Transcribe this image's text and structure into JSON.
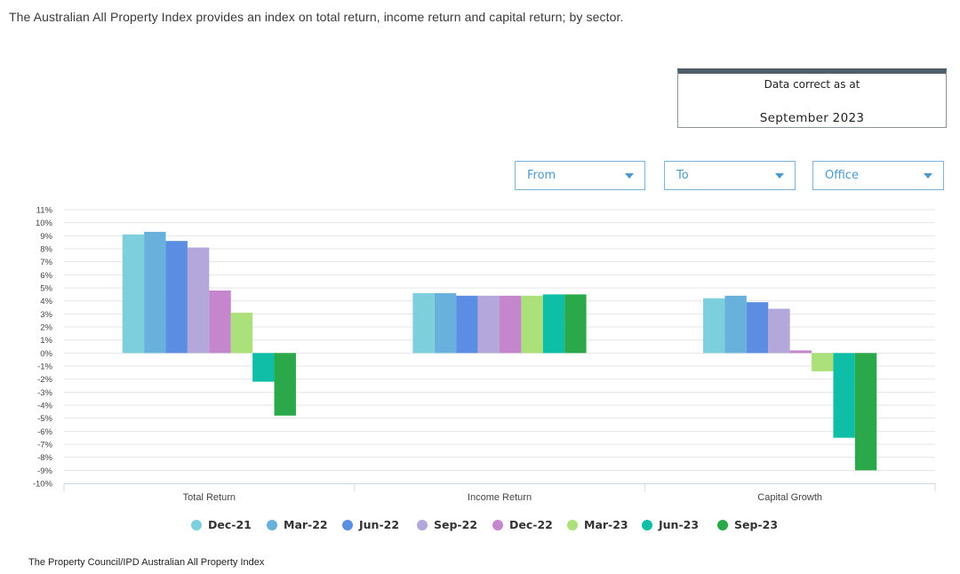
{
  "intro": "The Australian All Property Index provides an index on total return, income return and capital return; by sector.",
  "data_box": {
    "label": "Data correct as at",
    "value": "September 2023"
  },
  "filters": {
    "from": "From",
    "to": "To",
    "sector": "Office"
  },
  "source": "The Property Council/IPD Australian All Property Index",
  "chart_data": {
    "type": "bar",
    "title": "",
    "xlabel": "",
    "ylabel": "",
    "ylim": [
      -10,
      11
    ],
    "yticks": [
      "11%",
      "10%",
      "9%",
      "8%",
      "7%",
      "6%",
      "5%",
      "4%",
      "3%",
      "2%",
      "1%",
      "0%",
      "-1%",
      "-2%",
      "-3%",
      "-4%",
      "-5%",
      "-6%",
      "-7%",
      "-8%",
      "-9%",
      "-10%"
    ],
    "categories": [
      "Total Return",
      "Income Return",
      "Capital Growth"
    ],
    "grid": true,
    "legend_position": "bottom",
    "series": [
      {
        "name": "Dec-21",
        "color": "#7ecfdd",
        "values": [
          9.1,
          4.6,
          4.2
        ]
      },
      {
        "name": "Mar-22",
        "color": "#67b1dc",
        "values": [
          9.3,
          4.6,
          4.4
        ]
      },
      {
        "name": "Jun-22",
        "color": "#5b8ee2",
        "values": [
          8.6,
          4.4,
          3.9
        ]
      },
      {
        "name": "Sep-22",
        "color": "#b4a7da",
        "values": [
          8.1,
          4.4,
          3.4
        ]
      },
      {
        "name": "Dec-22",
        "color": "#c486cd",
        "values": [
          4.8,
          4.4,
          0.2
        ]
      },
      {
        "name": "Mar-23",
        "color": "#abe07a",
        "values": [
          3.1,
          4.4,
          -1.4
        ]
      },
      {
        "name": "Jun-23",
        "color": "#0fbea7",
        "values": [
          -2.2,
          4.5,
          -6.5
        ]
      },
      {
        "name": "Sep-23",
        "color": "#2aa84a",
        "values": [
          -4.8,
          4.5,
          -9.0
        ]
      }
    ]
  }
}
